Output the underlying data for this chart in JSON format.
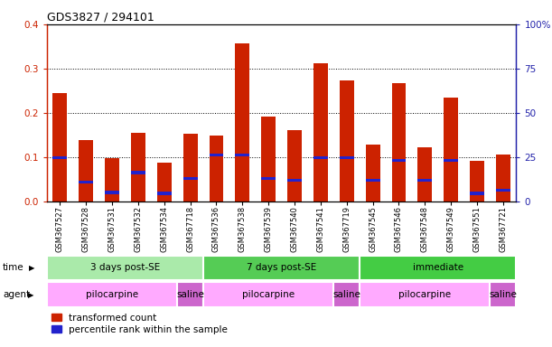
{
  "title": "GDS3827 / 294101",
  "samples": [
    "GSM367527",
    "GSM367528",
    "GSM367531",
    "GSM367532",
    "GSM367534",
    "GSM367718",
    "GSM367536",
    "GSM367538",
    "GSM367539",
    "GSM367540",
    "GSM367541",
    "GSM367719",
    "GSM367545",
    "GSM367546",
    "GSM367548",
    "GSM367549",
    "GSM367551",
    "GSM367721"
  ],
  "red_values": [
    0.245,
    0.138,
    0.097,
    0.155,
    0.088,
    0.152,
    0.148,
    0.357,
    0.192,
    0.16,
    0.312,
    0.273,
    0.128,
    0.268,
    0.122,
    0.235,
    0.092,
    0.105
  ],
  "blue_values": [
    0.098,
    0.043,
    0.02,
    0.065,
    0.018,
    0.052,
    0.105,
    0.105,
    0.052,
    0.048,
    0.098,
    0.098,
    0.048,
    0.092,
    0.048,
    0.092,
    0.018,
    0.025
  ],
  "ylim_left": [
    0,
    0.4
  ],
  "ylim_right": [
    0,
    100
  ],
  "yticks_left": [
    0,
    0.1,
    0.2,
    0.3,
    0.4
  ],
  "yticks_right": [
    0,
    25,
    50,
    75,
    100
  ],
  "ytick_labels_right": [
    "0",
    "25",
    "50",
    "75",
    "100%"
  ],
  "time_groups": [
    {
      "label": "3 days post-SE",
      "start": 0,
      "end": 5,
      "color": "#AAEAAA"
    },
    {
      "label": "7 days post-SE",
      "start": 6,
      "end": 11,
      "color": "#55CC55"
    },
    {
      "label": "immediate",
      "start": 12,
      "end": 17,
      "color": "#44CC44"
    }
  ],
  "agent_groups": [
    {
      "label": "pilocarpine",
      "start": 0,
      "end": 4,
      "color": "#FFAAFF"
    },
    {
      "label": "saline",
      "start": 5,
      "end": 5,
      "color": "#CC66CC"
    },
    {
      "label": "pilocarpine",
      "start": 6,
      "end": 10,
      "color": "#FFAAFF"
    },
    {
      "label": "saline",
      "start": 11,
      "end": 11,
      "color": "#CC66CC"
    },
    {
      "label": "pilocarpine",
      "start": 12,
      "end": 16,
      "color": "#FFAAFF"
    },
    {
      "label": "saline",
      "start": 17,
      "end": 17,
      "color": "#CC66CC"
    }
  ],
  "bar_color": "#CC2200",
  "blue_color": "#2222CC",
  "axis_color_left": "#CC2200",
  "axis_color_right": "#2222AA",
  "bar_width": 0.55,
  "legend_red": "transformed count",
  "legend_blue": "percentile rank within the sample",
  "time_label": "time",
  "agent_label": "agent"
}
